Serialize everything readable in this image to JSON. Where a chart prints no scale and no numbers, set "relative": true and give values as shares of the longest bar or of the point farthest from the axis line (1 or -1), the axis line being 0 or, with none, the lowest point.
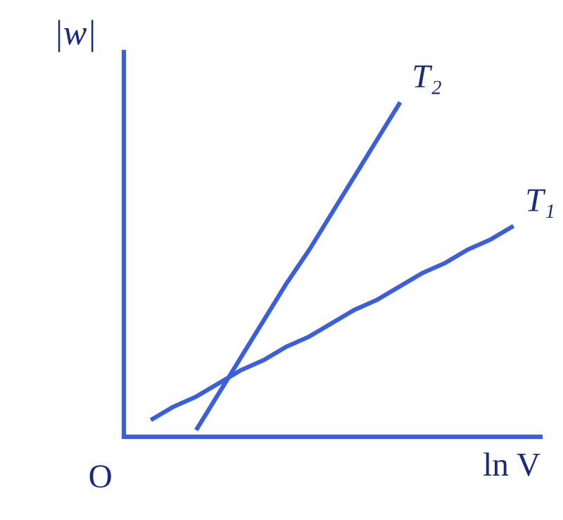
{
  "chart_data": {
    "type": "line",
    "relative": true,
    "xlabel": "ln V",
    "ylabel": "|w|",
    "tick_labels": false,
    "marker": "none",
    "line_style": "solid",
    "annotations": [
      "O"
    ],
    "categories": [
      null,
      null,
      null,
      null,
      null,
      null,
      null,
      null,
      null,
      null,
      null,
      null,
      null,
      null,
      null,
      null,
      null
    ],
    "series": [
      {
        "name": "T₂",
        "color": "#3a5ee0",
        "values": [
          null,
          null,
          0.02,
          0.13,
          0.24,
          0.35,
          0.46,
          0.56,
          0.67,
          0.78,
          0.89,
          1.0,
          null,
          null,
          null,
          null,
          null
        ]
      },
      {
        "name": "T₁",
        "color": "#3a5ee0",
        "values": [
          0.05,
          0.09,
          0.12,
          0.16,
          0.2,
          0.23,
          0.27,
          0.3,
          0.34,
          0.38,
          0.41,
          0.45,
          0.49,
          0.52,
          0.56,
          0.59,
          0.63
        ]
      }
    ]
  }
}
